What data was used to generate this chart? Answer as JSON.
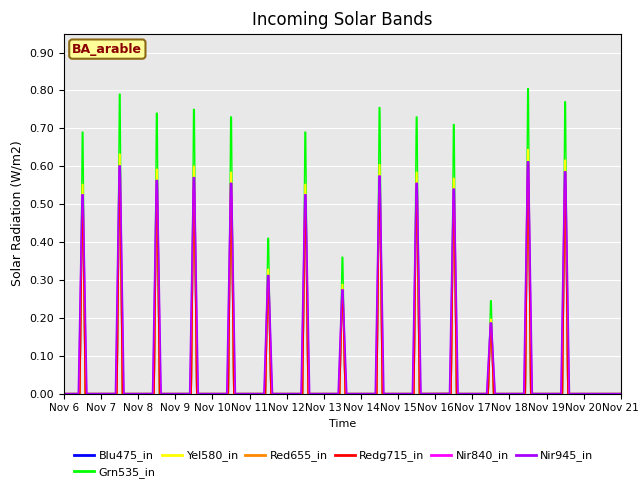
{
  "title": "Incoming Solar Bands",
  "xlabel": "Time",
  "ylabel": "Solar Radiation (W/m2)",
  "annotation": "BA_arable",
  "ylim": [
    0,
    0.95
  ],
  "yticks": [
    0.0,
    0.1,
    0.2,
    0.3,
    0.4,
    0.5,
    0.6,
    0.7,
    0.8,
    0.9
  ],
  "date_labels": [
    "Nov 6",
    "Nov 7",
    "Nov 8",
    "Nov 9",
    "Nov 10",
    "Nov 11",
    "Nov 12",
    "Nov 13",
    "Nov 14",
    "Nov 15",
    "Nov 16",
    "Nov 17",
    "Nov 18",
    "Nov 19",
    "Nov 20",
    "Nov 21"
  ],
  "bg_color": "#e8e8e8",
  "fig_bg": "#ffffff",
  "series_order": [
    "Blu475_in",
    "Grn535_in",
    "Yel580_in",
    "Red655_in",
    "Redg715_in",
    "Nir840_in",
    "Nir945_in"
  ],
  "series_colors": {
    "Blu475_in": "#0000ff",
    "Grn535_in": "#00ff00",
    "Yel580_in": "#ffff00",
    "Red655_in": "#ff8800",
    "Redg715_in": "#ff0000",
    "Nir840_in": "#ff00ff",
    "Nir945_in": "#aa00ff"
  },
  "lw": 1.0,
  "n_days": 15,
  "pts_per_day": 480,
  "day_peaks_grn": [
    0.69,
    0.79,
    0.74,
    0.75,
    0.73,
    0.41,
    0.69,
    0.36,
    0.755,
    0.73,
    0.71,
    0.245,
    0.805,
    0.77,
    0.0
  ],
  "scale_factors": {
    "Blu475_in": 0.7,
    "Grn535_in": 1.0,
    "Yel580_in": 0.8,
    "Red655_in": 0.75,
    "Redg715_in": 0.72,
    "Nir840_in": 0.76,
    "Nir945_in": 0.76
  },
  "width_factors": {
    "Blu475_in": 0.55,
    "Grn535_in": 0.55,
    "Yel580_in": 0.55,
    "Red655_in": 0.55,
    "Redg715_in": 0.55,
    "Nir840_in": 0.8,
    "Nir945_in": 0.9
  }
}
